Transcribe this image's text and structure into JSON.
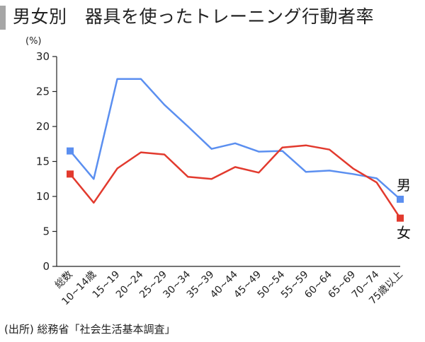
{
  "title": "男女別　器具を使ったトレーニング行動者率",
  "source": "(出所) 総務省「社会生活基本調査」",
  "chart_data": {
    "type": "line",
    "title": "男女別　器具を使ったトレーニング行動者率",
    "ylabel": "(%)",
    "xlabel": "",
    "ylim": [
      0,
      30
    ],
    "yticks": [
      0,
      5,
      10,
      15,
      20,
      25,
      30
    ],
    "grid": false,
    "categories": [
      "総数",
      "10~14歳",
      "15~19",
      "20~24",
      "25~29",
      "30~34",
      "35~39",
      "40~44",
      "45~49",
      "50~54",
      "55~59",
      "60~64",
      "65~69",
      "70~74",
      "75歳以上"
    ],
    "series": [
      {
        "name": "男",
        "color": "#5b8ff0",
        "marker": "square",
        "values": [
          16.5,
          12.5,
          26.8,
          26.8,
          23.1,
          20.0,
          16.8,
          17.6,
          16.4,
          16.5,
          13.5,
          13.7,
          13.2,
          12.6,
          9.6
        ]
      },
      {
        "name": "女",
        "color": "#e23a2e",
        "marker": "square",
        "values": [
          13.2,
          9.1,
          14.0,
          16.3,
          16.0,
          12.8,
          12.5,
          14.2,
          13.4,
          17.0,
          17.3,
          16.7,
          14.0,
          12.0,
          6.9
        ]
      }
    ]
  }
}
